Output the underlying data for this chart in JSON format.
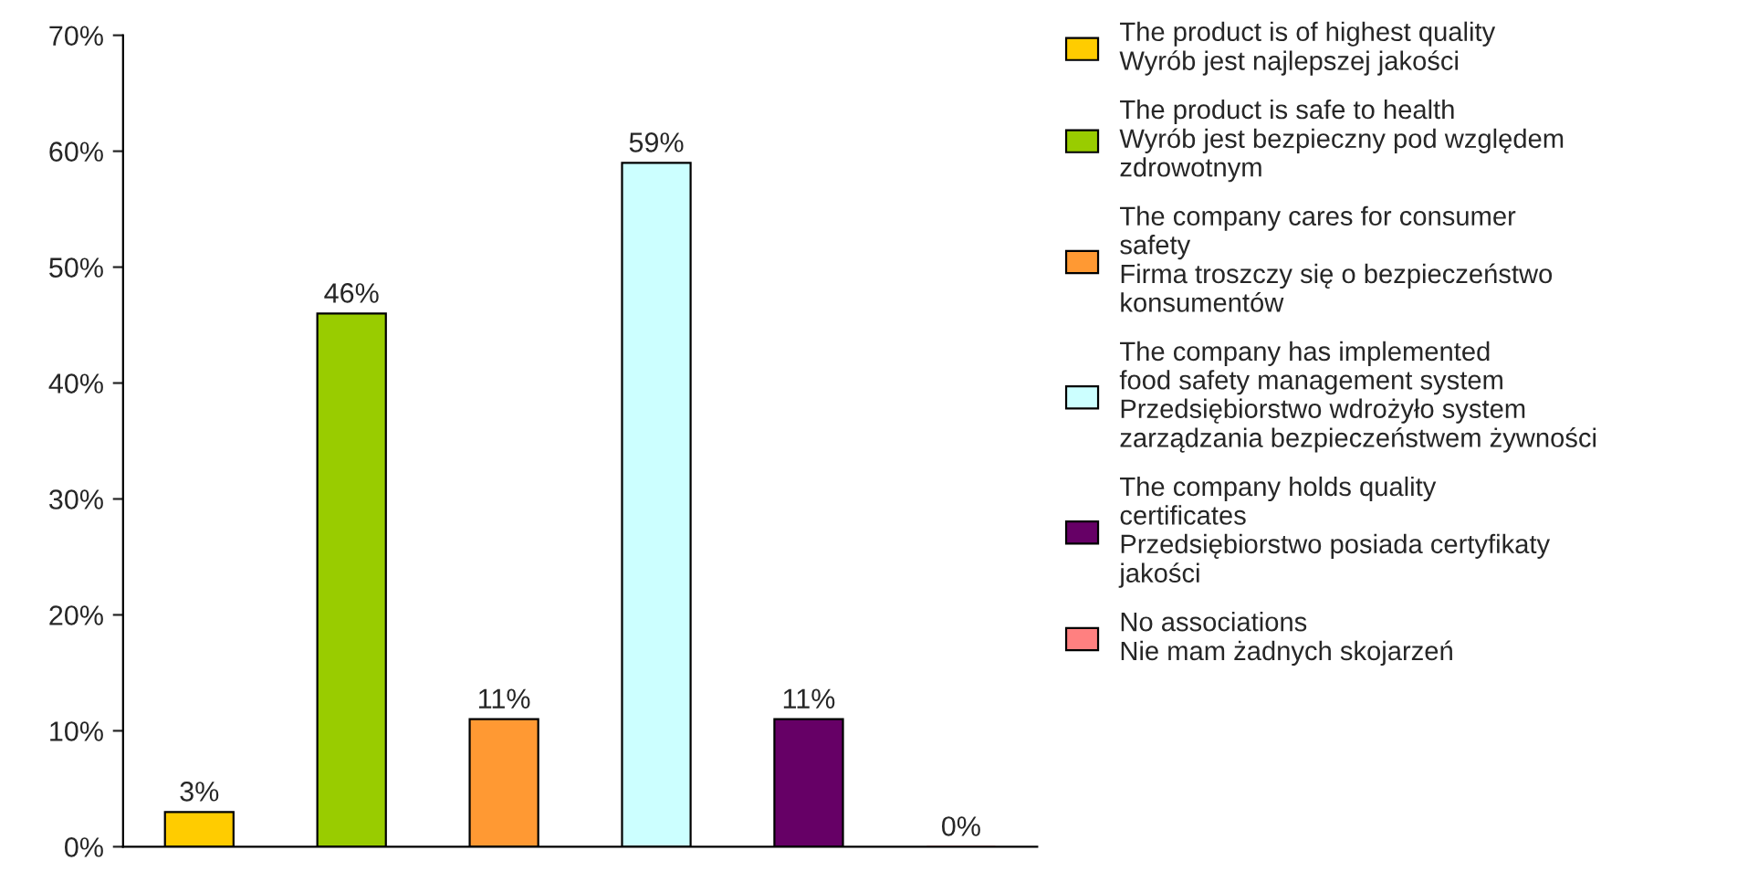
{
  "chart_data": {
    "type": "bar",
    "categories": [
      null,
      null,
      null,
      null,
      null,
      null
    ],
    "series": [
      {
        "name": "The product is of highest quality\nWyrób jest najlepszej jakości",
        "color": "#ffcc00",
        "values": [
          3,
          null,
          null,
          null,
          null,
          null
        ],
        "value_labels": [
          "3%",
          null,
          null,
          null,
          null,
          null
        ]
      },
      {
        "name": "The product is safe to health\nWyrób jest bezpieczny pod względem\nzdrowotnym",
        "color": "#99cc00",
        "values": [
          null,
          46,
          null,
          null,
          null,
          null
        ],
        "value_labels": [
          null,
          "46%",
          null,
          null,
          null,
          null
        ]
      },
      {
        "name": "The company cares for consumer\nsafety\nFirma troszczy się o bezpieczeństwo\nkonsumentów",
        "color": "#ff9933",
        "values": [
          null,
          null,
          11,
          null,
          null,
          null
        ],
        "value_labels": [
          null,
          null,
          "11%",
          null,
          null,
          null
        ]
      },
      {
        "name": "The company has implemented\nfood safety management system\nPrzedsiębiorstwo wdrożyło system\nzarządzania bezpieczeństwem żywności",
        "color": "#ccffff",
        "values": [
          null,
          null,
          null,
          59,
          null,
          null
        ],
        "value_labels": [
          null,
          null,
          null,
          "59%",
          null,
          null
        ]
      },
      {
        "name": "The company holds quality\ncertificates\nPrzedsiębiorstwo posiada certyfikaty\njakości",
        "color": "#660066",
        "values": [
          null,
          null,
          null,
          null,
          11,
          null
        ],
        "value_labels": [
          null,
          null,
          null,
          null,
          "11%",
          null
        ]
      },
      {
        "name": "No associations\nNie mam żadnych skojarzeń",
        "color": "#ff8080",
        "values": [
          null,
          null,
          null,
          null,
          null,
          0
        ],
        "value_labels": [
          null,
          null,
          null,
          null,
          null,
          "0%"
        ]
      }
    ],
    "ylim": [
      0,
      70
    ],
    "yticks": [
      {
        "value": 0,
        "label": "0%"
      },
      {
        "value": 10,
        "label": "10%"
      },
      {
        "value": 20,
        "label": "20%"
      },
      {
        "value": 30,
        "label": "30%"
      },
      {
        "value": 40,
        "label": "40%"
      },
      {
        "value": 50,
        "label": "50%"
      },
      {
        "value": 60,
        "label": "60%"
      },
      {
        "value": 70,
        "label": "70%"
      }
    ],
    "grid": false,
    "legend": "right"
  }
}
